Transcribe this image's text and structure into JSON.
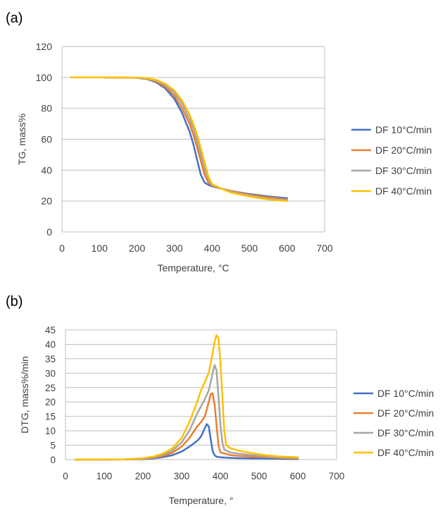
{
  "colors": {
    "DF 10°C/min": "#4472c4",
    "DF 20°C/min": "#ed7d31",
    "DF 30°C/min": "#a5a5a5",
    "DF 40°C/min": "#ffc000",
    "grid": "#bfbfbf",
    "axis": "#bfbfbf"
  },
  "chart_data": [
    {
      "panel_label": "(a)",
      "type": "line",
      "title": "",
      "xlabel": "Temperature, °C",
      "ylabel": "TG, mass%",
      "xlim": [
        0,
        700
      ],
      "ylim": [
        0,
        120
      ],
      "xticks": [
        0,
        100,
        200,
        300,
        400,
        500,
        600,
        700
      ],
      "yticks": [
        0,
        20,
        40,
        60,
        80,
        100,
        120
      ],
      "grid": "horizontal",
      "legend_position": "right",
      "series": [
        {
          "name": "DF 10°C/min",
          "x": [
            25,
            100,
            175,
            200,
            225,
            250,
            275,
            300,
            320,
            340,
            350,
            360,
            370,
            380,
            390,
            400,
            425,
            450,
            500,
            550,
            600
          ],
          "y": [
            100,
            100,
            99.9,
            99.7,
            99,
            97,
            93,
            86,
            77,
            65,
            57,
            47,
            37,
            32,
            30.5,
            29.5,
            28,
            26.5,
            24.5,
            23,
            21.8
          ]
        },
        {
          "name": "DF 20°C/min",
          "x": [
            25,
            100,
            175,
            200,
            225,
            250,
            275,
            300,
            320,
            340,
            350,
            360,
            370,
            380,
            390,
            400,
            425,
            450,
            500,
            550,
            600
          ],
          "y": [
            100,
            100,
            99.9,
            99.8,
            99.2,
            97.5,
            94,
            88,
            80,
            70,
            63,
            55,
            46,
            37,
            32,
            30,
            28,
            26.5,
            24,
            22.5,
            21
          ]
        },
        {
          "name": "DF 30°C/min",
          "x": [
            25,
            100,
            175,
            200,
            225,
            250,
            275,
            300,
            320,
            340,
            350,
            360,
            370,
            380,
            390,
            400,
            425,
            450,
            500,
            550,
            600
          ],
          "y": [
            100,
            100,
            99.9,
            99.8,
            99.4,
            98,
            95,
            90,
            83,
            73,
            67,
            59,
            50,
            41,
            34,
            30.5,
            28,
            26,
            23.5,
            21.5,
            20.5
          ]
        },
        {
          "name": "DF 40°C/min",
          "x": [
            25,
            100,
            175,
            200,
            225,
            250,
            275,
            300,
            320,
            340,
            350,
            360,
            370,
            380,
            390,
            400,
            425,
            450,
            500,
            550,
            600
          ],
          "y": [
            100,
            100,
            99.9,
            99.9,
            99.5,
            98.5,
            96,
            91.5,
            85,
            76,
            70,
            63,
            54,
            45,
            36,
            31,
            28,
            25.5,
            23,
            21,
            20
          ]
        }
      ]
    },
    {
      "panel_label": "(b)",
      "type": "line",
      "title": "",
      "xlabel": "Temperature, °",
      "ylabel": "DTG, mass%/min",
      "xlim": [
        0,
        700
      ],
      "ylim": [
        0,
        45
      ],
      "xticks": [
        0,
        100,
        200,
        300,
        400,
        500,
        600,
        700
      ],
      "yticks": [
        0,
        5,
        10,
        15,
        20,
        25,
        30,
        35,
        40,
        45
      ],
      "grid": "horizontal",
      "legend_position": "right",
      "series": [
        {
          "name": "DF 10°C/min",
          "x": [
            25,
            150,
            200,
            225,
            250,
            275,
            300,
            320,
            340,
            350,
            360,
            365,
            370,
            375,
            380,
            385,
            390,
            400,
            425,
            450,
            500,
            550,
            600
          ],
          "y": [
            0,
            0.05,
            0.2,
            0.4,
            0.8,
            1.5,
            2.8,
            4.5,
            6.5,
            8,
            11,
            12.3,
            11.5,
            7,
            3,
            1.5,
            1,
            0.8,
            0.6,
            0.5,
            0.4,
            0.3,
            0.2
          ]
        },
        {
          "name": "DF 20°C/min",
          "x": [
            25,
            150,
            200,
            225,
            250,
            275,
            300,
            320,
            340,
            350,
            360,
            370,
            375,
            380,
            385,
            390,
            395,
            400,
            425,
            450,
            500,
            550,
            600
          ],
          "y": [
            0,
            0.05,
            0.3,
            0.6,
            1.2,
            2.3,
            4.5,
            7.5,
            11.5,
            13,
            15,
            20,
            22.8,
            23,
            19,
            12,
            5,
            2.5,
            1.6,
            1.3,
            0.9,
            0.6,
            0.4
          ]
        },
        {
          "name": "DF 30°C/min",
          "x": [
            25,
            150,
            200,
            225,
            250,
            275,
            300,
            320,
            340,
            350,
            360,
            370,
            380,
            385,
            390,
            395,
            400,
            405,
            410,
            425,
            450,
            500,
            550,
            600
          ],
          "y": [
            0,
            0.05,
            0.4,
            0.8,
            1.6,
            3,
            6,
            10,
            16,
            18.5,
            21,
            24,
            30,
            32.8,
            31,
            22,
            12,
            6,
            3.5,
            2.5,
            2,
            1.3,
            0.8,
            0.6
          ]
        },
        {
          "name": "DF 40°C/min",
          "x": [
            25,
            150,
            200,
            225,
            250,
            275,
            300,
            320,
            340,
            350,
            360,
            370,
            380,
            385,
            390,
            395,
            400,
            405,
            410,
            415,
            425,
            450,
            500,
            550,
            600
          ],
          "y": [
            0,
            0.05,
            0.5,
            1,
            2,
            3.8,
            7.5,
            13,
            20,
            24,
            27,
            30,
            37,
            41,
            43.2,
            42,
            34,
            22,
            10,
            5,
            4,
            3,
            1.8,
            1.1,
            0.8
          ]
        }
      ]
    }
  ]
}
